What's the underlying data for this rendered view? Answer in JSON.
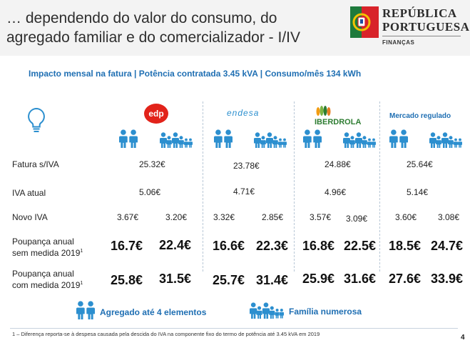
{
  "header": {
    "title_line1": "… dependendo do valor do consumo, do",
    "title_line2": "agregado familiar e do comercializador - I/IV",
    "logo_line1": "REPÚBLICA",
    "logo_line2": "PORTUGUESA",
    "logo_sub": "FINANÇAS"
  },
  "subtitle": "Impacto mensal na fatura | Potência contratada 3.45 kVA | Consumo/mês 134 kWh",
  "providers": {
    "edp": "edp",
    "endesa": "endesa",
    "iberdrola": "IBERDROLA",
    "mercado": "Mercado regulado"
  },
  "rows": {
    "fatura": {
      "label": "Fatura s/IVA",
      "values": [
        "25.32€",
        "23.78€",
        "24.88€",
        "25.64€"
      ]
    },
    "iva": {
      "label": "IVA atual",
      "values": [
        "5.06€",
        "4.71€",
        "4.96€",
        "5.14€"
      ]
    },
    "novo_iva": {
      "label": "Novo IVA",
      "values": [
        "3.67€",
        "3.20€",
        "3.32€",
        "2.85€",
        "3.57€",
        "3.09€",
        "3.60€",
        "3.08€"
      ]
    },
    "poupanca_sem": {
      "label_line1": "Poupança anual",
      "label_line2": "sem medida 2019",
      "sup": "1",
      "values": [
        "16.7€",
        "22.4€",
        "16.6€",
        "22.3€",
        "16.8€",
        "22.5€",
        "18.5€",
        "24.7€"
      ]
    },
    "poupanca_com": {
      "label_line1": "Poupança anual",
      "label_line2": "com medida 2019",
      "sup": "1",
      "values": [
        "25.8€",
        "31.5€",
        "25.7€",
        "31.4€",
        "25.9€",
        "31.6€",
        "27.6€",
        "33.9€"
      ]
    }
  },
  "legend": {
    "small": "Agregado até 4 elementos",
    "large": "Família numerosa"
  },
  "footnote": "1 – Diferença reporta-se à despesa causada pela descida do IVA na componente fixo do termo de potência até 3.45 kVA em 2019",
  "page_number": "4",
  "colors": {
    "accent": "#1f6fb3",
    "edp_red": "#e2231a",
    "iberdrola_green": "#2e7d32"
  }
}
